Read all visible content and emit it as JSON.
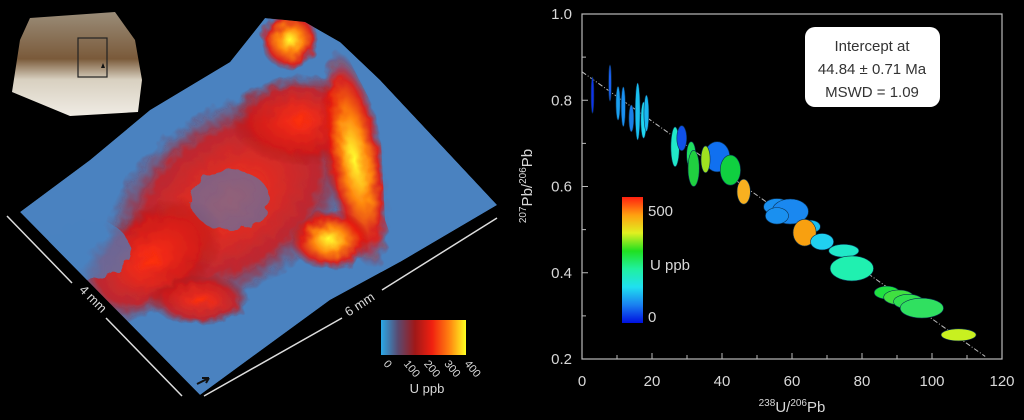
{
  "left_panel": {
    "scale_labels": [
      "4 mm",
      "6 mm"
    ],
    "colorbar": {
      "ticks": [
        "0",
        "100",
        "200",
        "300",
        "400"
      ],
      "label": "U ppb",
      "colors": [
        "#29a8e8",
        "#5a4a70",
        "#a01818",
        "#f02010",
        "#ff8010",
        "#ffff20"
      ]
    }
  },
  "chart_data": {
    "type": "scatter",
    "subtype": "error-ellipse",
    "xlabel": {
      "pre": "238",
      "mid": "U/",
      "sup": "206",
      "post": "Pb"
    },
    "ylabel": {
      "pre": "207",
      "mid": "Pb/",
      "sup": "206",
      "post": "Pb"
    },
    "xlim": [
      0,
      120
    ],
    "ylim": [
      0.2,
      1.0
    ],
    "xticks": [
      "0",
      "20",
      "40",
      "60",
      "80",
      "100",
      "120"
    ],
    "yticks": [
      "0.2",
      "0.4",
      "0.6",
      "0.8",
      "1.0"
    ],
    "grid": false,
    "annotation": [
      "Intercept at",
      "44.84 ± 0.71 Ma",
      "MSWD = 1.09"
    ],
    "regression_line": {
      "x": [
        0,
        115.2
      ],
      "y": [
        0.866,
        0.206
      ],
      "style": "dash-dot"
    },
    "colorbar": {
      "min_label": "0",
      "max_label": "500",
      "label": "U ppb",
      "colors": [
        "#0010e0",
        "#1a80f0",
        "#20e0f0",
        "#20f0a0",
        "#20e020",
        "#e0f020",
        "#ffa010",
        "#ff2010"
      ]
    },
    "ellipses": [
      {
        "x": 3,
        "y": 0.812,
        "rx": 0.4,
        "ry": 0.042,
        "color": "#1030f0"
      },
      {
        "x": 8,
        "y": 0.84,
        "rx": 0.4,
        "ry": 0.042,
        "color": "#1a5ef0"
      },
      {
        "x": 10.3,
        "y": 0.793,
        "rx": 0.6,
        "ry": 0.039,
        "color": "#1aa0f0"
      },
      {
        "x": 11.8,
        "y": 0.785,
        "rx": 0.6,
        "ry": 0.046,
        "color": "#1a8ff0"
      },
      {
        "x": 14.1,
        "y": 0.758,
        "rx": 0.7,
        "ry": 0.031,
        "color": "#1a7fe8"
      },
      {
        "x": 15.9,
        "y": 0.774,
        "rx": 0.7,
        "ry": 0.066,
        "color": "#19c0f0"
      },
      {
        "x": 17.6,
        "y": 0.754,
        "rx": 0.8,
        "ry": 0.042,
        "color": "#20d8f0"
      },
      {
        "x": 18.4,
        "y": 0.77,
        "rx": 0.7,
        "ry": 0.042,
        "color": "#1ab8f0"
      },
      {
        "x": 26.6,
        "y": 0.692,
        "rx": 1.2,
        "ry": 0.046,
        "color": "#20e8c8"
      },
      {
        "x": 28.5,
        "y": 0.712,
        "rx": 1.4,
        "ry": 0.029,
        "color": "#1050e8"
      },
      {
        "x": 31.2,
        "y": 0.673,
        "rx": 1.3,
        "ry": 0.031,
        "color": "#20e060"
      },
      {
        "x": 31.9,
        "y": 0.642,
        "rx": 1.6,
        "ry": 0.042,
        "color": "#20d040"
      },
      {
        "x": 38.6,
        "y": 0.669,
        "rx": 3.6,
        "ry": 0.035,
        "color": "#1070f0"
      },
      {
        "x": 35.3,
        "y": 0.663,
        "rx": 1.3,
        "ry": 0.031,
        "color": "#a0e020"
      },
      {
        "x": 42.4,
        "y": 0.638,
        "rx": 2.9,
        "ry": 0.035,
        "color": "#10d040"
      },
      {
        "x": 46.2,
        "y": 0.588,
        "rx": 1.9,
        "ry": 0.029,
        "color": "#f8b020"
      },
      {
        "x": 55.7,
        "y": 0.553,
        "rx": 3.8,
        "ry": 0.019,
        "color": "#1a90f0"
      },
      {
        "x": 59.5,
        "y": 0.542,
        "rx": 5.2,
        "ry": 0.029,
        "color": "#1a88f0"
      },
      {
        "x": 55.7,
        "y": 0.532,
        "rx": 3.3,
        "ry": 0.019,
        "color": "#1a90f0"
      },
      {
        "x": 65.2,
        "y": 0.507,
        "rx": 2.9,
        "ry": 0.015,
        "color": "#1ac0f0"
      },
      {
        "x": 63.6,
        "y": 0.493,
        "rx": 3.3,
        "ry": 0.031,
        "color": "#f8a010"
      },
      {
        "x": 68.6,
        "y": 0.472,
        "rx": 3.3,
        "ry": 0.019,
        "color": "#20d0f0"
      },
      {
        "x": 74.8,
        "y": 0.451,
        "rx": 4.3,
        "ry": 0.015,
        "color": "#20e8c8"
      },
      {
        "x": 77.1,
        "y": 0.41,
        "rx": 6.2,
        "ry": 0.029,
        "color": "#20f0b0"
      },
      {
        "x": 87.1,
        "y": 0.354,
        "rx": 3.6,
        "ry": 0.015,
        "color": "#20e040"
      },
      {
        "x": 90.5,
        "y": 0.343,
        "rx": 4.3,
        "ry": 0.017,
        "color": "#40e040"
      },
      {
        "x": 93.3,
        "y": 0.333,
        "rx": 4.3,
        "ry": 0.017,
        "color": "#30e050"
      },
      {
        "x": 97.1,
        "y": 0.318,
        "rx": 6.2,
        "ry": 0.023,
        "color": "#30e060"
      },
      {
        "x": 107.6,
        "y": 0.256,
        "rx": 5.0,
        "ry": 0.014,
        "color": "#c8f020"
      }
    ]
  }
}
